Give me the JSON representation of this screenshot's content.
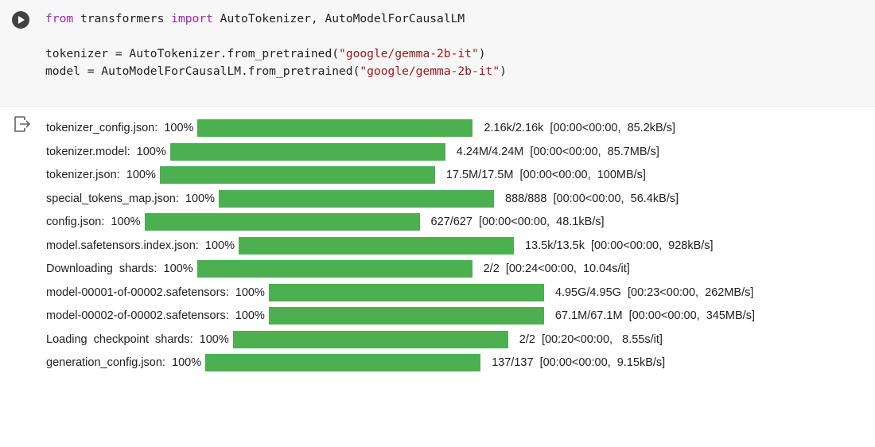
{
  "code": {
    "blocks": [
      [
        {
          "tokens": [
            {
              "text": "from",
              "color": "#9c27b0"
            },
            {
              "text": " transformers ",
              "color": "#212121"
            },
            {
              "text": "import",
              "color": "#9c27b0"
            },
            {
              "text": " AutoTokenizer, AutoModelForCausalLM",
              "color": "#212121"
            }
          ]
        }
      ],
      [
        {
          "tokens": [
            {
              "text": "tokenizer = AutoTokenizer.from_pretrained(",
              "color": "#212121"
            },
            {
              "text": "\"google/gemma-2b-it\"",
              "color": "#a31515"
            },
            {
              "text": ")",
              "color": "#212121"
            }
          ]
        },
        {
          "tokens": [
            {
              "text": "model = AutoModelForCausalLM.from_pretrained(",
              "color": "#212121"
            },
            {
              "text": "\"google/gemma-2b-it\"",
              "color": "#a31515"
            },
            {
              "text": ")",
              "color": "#212121"
            }
          ]
        }
      ]
    ]
  },
  "output": {
    "bar_color": "#4caf50",
    "rows": [
      {
        "label": "tokenizer_config.json:",
        "progress": {
          "value": 100,
          "label": "100%"
        },
        "stats": "2.16k/2.16k  [00:00<00:00,  85.2kB/s]"
      },
      {
        "label": "tokenizer.model:",
        "progress": {
          "value": 100,
          "label": "100%"
        },
        "stats": "4.24M/4.24M  [00:00<00:00,  85.7MB/s]"
      },
      {
        "label": "tokenizer.json:",
        "progress": {
          "value": 100,
          "label": "100%"
        },
        "stats": "17.5M/17.5M  [00:00<00:00,  100MB/s]"
      },
      {
        "label": "special_tokens_map.json:",
        "progress": {
          "value": 100,
          "label": "100%"
        },
        "stats": "888/888  [00:00<00:00,  56.4kB/s]"
      },
      {
        "label": "config.json:",
        "progress": {
          "value": 100,
          "label": "100%"
        },
        "stats": "627/627  [00:00<00:00,  48.1kB/s]"
      },
      {
        "label": "model.safetensors.index.json:",
        "progress": {
          "value": 100,
          "label": "100%"
        },
        "stats": "13.5k/13.5k  [00:00<00:00,  928kB/s]"
      },
      {
        "label": "Downloading  shards:",
        "progress": {
          "value": 100,
          "label": "100%"
        },
        "stats": "2/2  [00:24<00:00,  10.04s/it]"
      },
      {
        "label": "model-00001-of-00002.safetensors:",
        "progress": {
          "value": 100,
          "label": "100%"
        },
        "stats": "4.95G/4.95G  [00:23<00:00,  262MB/s]"
      },
      {
        "label": "model-00002-of-00002.safetensors:",
        "progress": {
          "value": 100,
          "label": "100%"
        },
        "stats": "67.1M/67.1M  [00:00<00:00,  345MB/s]"
      },
      {
        "label": "Loading  checkpoint  shards:",
        "progress": {
          "value": 100,
          "label": "100%"
        },
        "stats": "2/2  [00:20<00:00,   8.55s/it]"
      },
      {
        "label": "generation_config.json:",
        "progress": {
          "value": 100,
          "label": "100%"
        },
        "stats": "137/137  [00:00<00:00,  9.15kB/s]"
      }
    ]
  }
}
